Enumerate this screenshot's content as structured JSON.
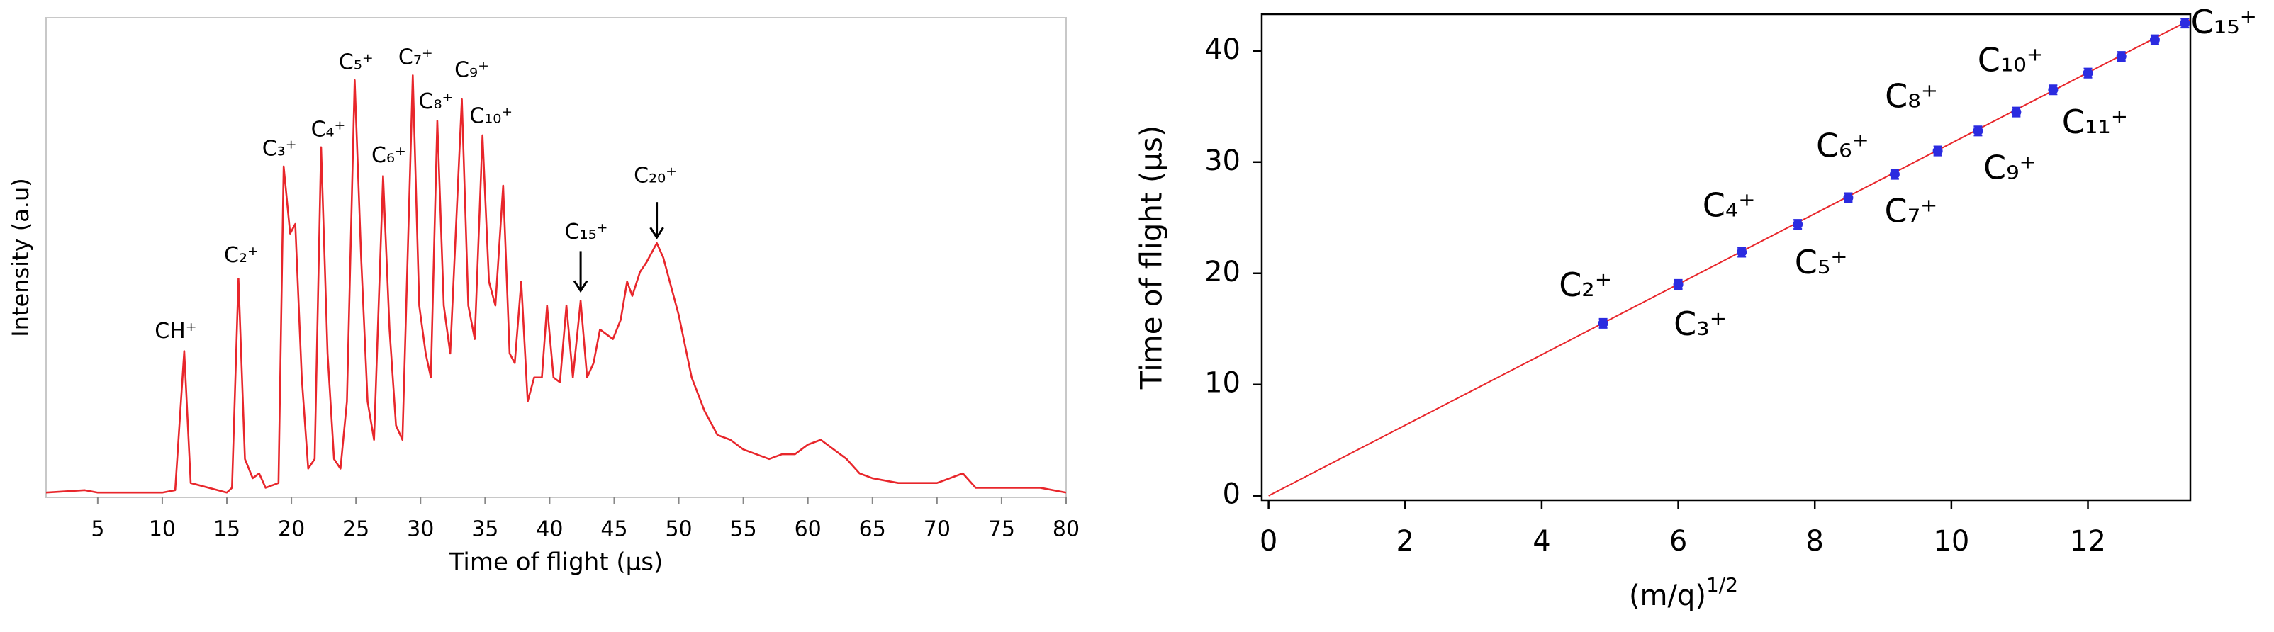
{
  "chart_data": [
    {
      "type": "line",
      "x_label": "Time of flight (μs)",
      "y_label": "Intensity (a.u)",
      "color": "#e8262b",
      "xlim": [
        1,
        80
      ],
      "xticks": [
        5,
        10,
        15,
        20,
        25,
        30,
        35,
        40,
        45,
        50,
        55,
        60,
        65,
        70,
        75,
        80
      ],
      "ylim": [
        0,
        100
      ],
      "x": [
        1,
        4,
        5,
        10,
        11,
        11.7,
        12.2,
        15,
        15.4,
        15.9,
        16.4,
        17,
        17.5,
        18,
        19,
        19.4,
        19.9,
        20.3,
        20.8,
        21.3,
        21.8,
        22.3,
        22.8,
        23.3,
        23.8,
        24.3,
        24.9,
        25.4,
        25.9,
        26.4,
        27.1,
        27.6,
        28.1,
        28.6,
        29.4,
        29.9,
        30.4,
        30.8,
        31.3,
        31.8,
        32.3,
        33.2,
        33.7,
        34.2,
        34.8,
        35.3,
        35.8,
        36.4,
        36.9,
        37.3,
        37.8,
        38.3,
        38.8,
        39.4,
        39.8,
        40.3,
        40.8,
        41.3,
        41.8,
        42.4,
        42.9,
        43.4,
        43.9,
        44.4,
        44.9,
        45.5,
        46,
        46.4,
        47,
        47.5,
        48.3,
        48.8,
        49.4,
        50,
        51,
        52,
        53,
        54,
        55,
        56,
        57,
        58,
        59,
        60,
        61,
        62,
        63,
        64,
        65,
        67,
        70,
        72,
        73,
        75,
        78,
        80
      ],
      "values": [
        1,
        1.5,
        1,
        1,
        1.5,
        30.5,
        3,
        1,
        2,
        45.6,
        8,
        4,
        5,
        2,
        3,
        69,
        55,
        57,
        25,
        6,
        8,
        73,
        30,
        8,
        6,
        20,
        87,
        50,
        20,
        12,
        67,
        35,
        15,
        12,
        88,
        40,
        30,
        25,
        78.5,
        40,
        30,
        83,
        40,
        33,
        75.5,
        45,
        40,
        65,
        30,
        28,
        45,
        20,
        25,
        25,
        40,
        25,
        24,
        40,
        25,
        41,
        25,
        28,
        35,
        34,
        33,
        37,
        45,
        42,
        47,
        49,
        53,
        50,
        44,
        38,
        25,
        18,
        13,
        12,
        10,
        9,
        8,
        9,
        9,
        11,
        12,
        10,
        8,
        5,
        4,
        3,
        3,
        5,
        2,
        2,
        2,
        1
      ],
      "annotations": [
        "CH⁺",
        "C₂⁺",
        "C₃⁺",
        "C₄⁺",
        "C₅⁺",
        "C₆⁺",
        "C₇⁺",
        "C₈⁺",
        "C₉⁺",
        "C₁₀⁺",
        "C₁₅⁺",
        "C₂₀⁺"
      ]
    },
    {
      "type": "scatter",
      "x_label": "(m/q)",
      "x_label_sup": "1/2",
      "y_label": "Time of flight (µs)",
      "xlim": [
        -0.1,
        13.5
      ],
      "xticks": [
        0,
        2,
        4,
        6,
        8,
        10,
        12
      ],
      "ylim": [
        -0.4,
        43.3
      ],
      "yticks": [
        0,
        10,
        20,
        30,
        40
      ],
      "series": [
        {
          "color": "#2b2be0",
          "x": [
            4.9,
            6.0,
            6.93,
            7.75,
            8.49,
            9.17,
            9.8,
            10.39,
            10.95,
            11.49,
            12.0,
            12.49,
            12.98,
            13.42
          ],
          "y": [
            15.5,
            19.0,
            21.9,
            24.4,
            26.8,
            28.9,
            31.0,
            32.8,
            34.5,
            36.5,
            38.0,
            39.5,
            41.0,
            42.5
          ],
          "errors": [
            0.4,
            0.4,
            0.4,
            0.4,
            0.4,
            0.4,
            0.4,
            0.4,
            0.4,
            0.4,
            0.4,
            0.4,
            0.4,
            0.4
          ]
        }
      ],
      "fit": {
        "color": "#e8262b",
        "x": [
          0,
          13.5
        ],
        "y": [
          0,
          42.8
        ]
      },
      "annotations": [
        "C₂⁺",
        "C₃⁺",
        "C₄⁺",
        "C₅⁺",
        "C₆⁺",
        "C₇⁺",
        "C₈⁺",
        "C₉⁺",
        "C₁₀⁺",
        "C₁₁⁺",
        "C₁₅⁺"
      ]
    }
  ]
}
